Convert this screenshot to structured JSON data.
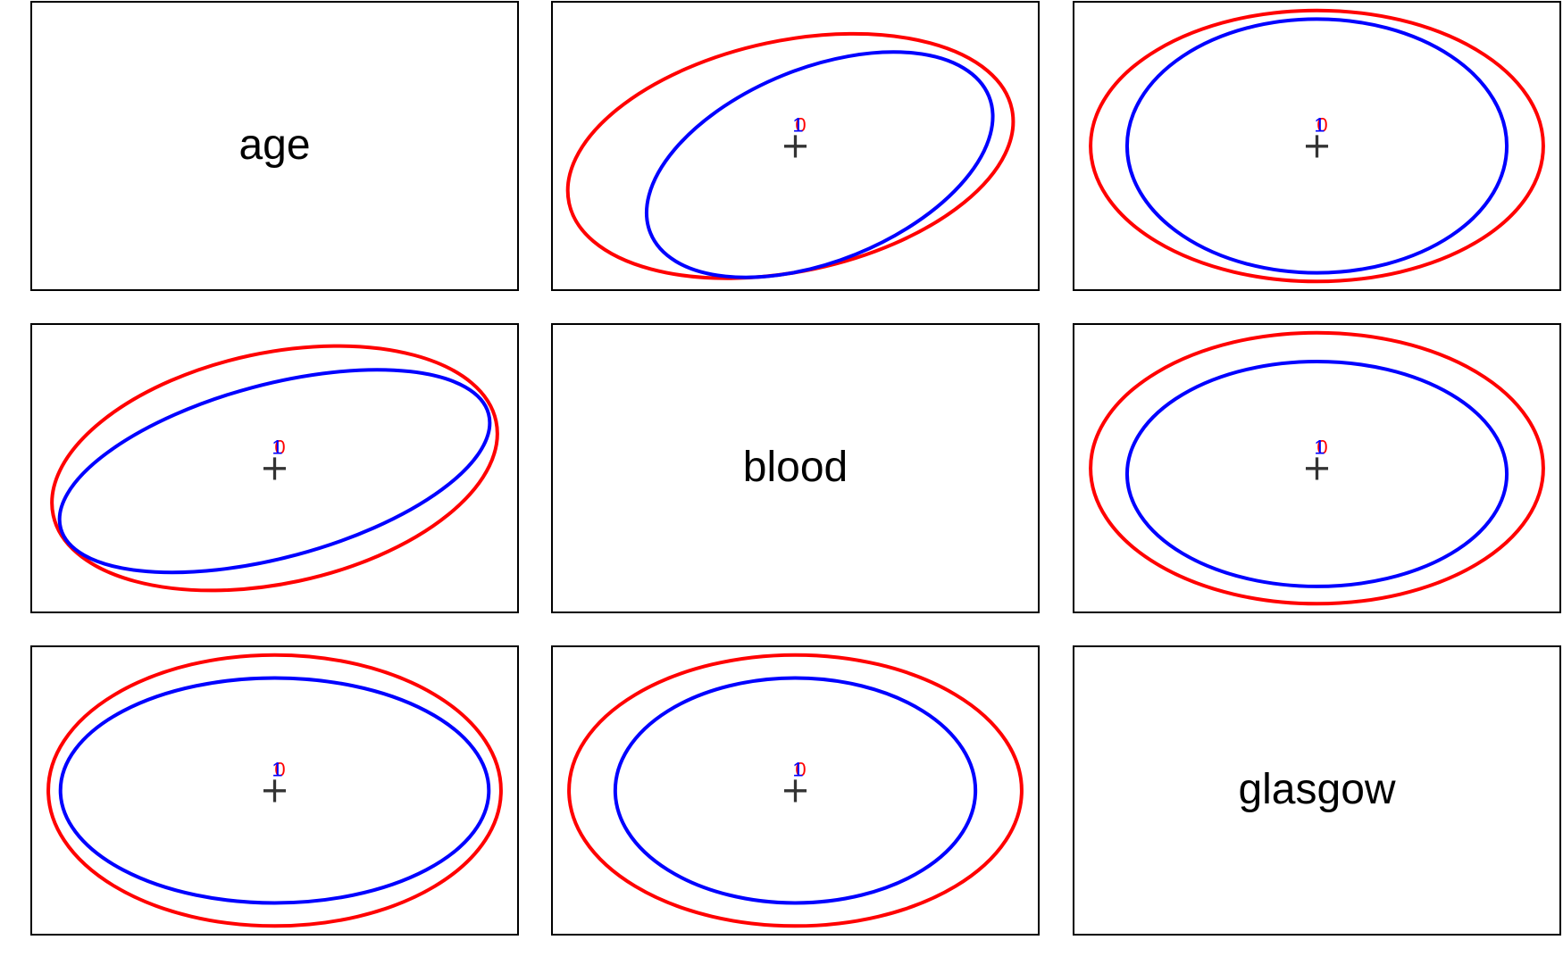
{
  "chart_data": {
    "type": "ellipse-matrix",
    "variables": [
      "age",
      "blood",
      "glasgow"
    ],
    "colors": {
      "group_a": "#ff0000",
      "group_b": "#0000ff",
      "frame": "#000000",
      "center": "#333333"
    },
    "center_marker": "+",
    "center_labels": {
      "group_a": "0",
      "group_b": "1"
    },
    "cells": [
      {
        "row": 0,
        "col": 0,
        "kind": "label",
        "text": "age"
      },
      {
        "row": 0,
        "col": 1,
        "kind": "ellipses",
        "red": {
          "cx": -0.02,
          "cy": 0.07,
          "rx": 0.93,
          "ry": 0.8,
          "angle": -12
        },
        "blue": {
          "cx": 0.1,
          "cy": 0.13,
          "rx": 0.75,
          "ry": 0.67,
          "angle": -22
        }
      },
      {
        "row": 0,
        "col": 2,
        "kind": "ellipses",
        "red": {
          "cx": 0.0,
          "cy": 0.0,
          "rx": 0.93,
          "ry": 0.94,
          "angle": 0
        },
        "blue": {
          "cx": 0.0,
          "cy": 0.0,
          "rx": 0.78,
          "ry": 0.88,
          "angle": 0
        }
      },
      {
        "row": 1,
        "col": 0,
        "kind": "ellipses",
        "red": {
          "cx": 0.0,
          "cy": 0.0,
          "rx": 0.93,
          "ry": 0.8,
          "angle": -12
        },
        "blue": {
          "cx": 0.0,
          "cy": 0.02,
          "rx": 0.91,
          "ry": 0.6,
          "angle": -15
        }
      },
      {
        "row": 1,
        "col": 1,
        "kind": "label",
        "text": "blood"
      },
      {
        "row": 1,
        "col": 2,
        "kind": "ellipses",
        "red": {
          "cx": 0.0,
          "cy": 0.0,
          "rx": 0.93,
          "ry": 0.94,
          "angle": 0
        },
        "blue": {
          "cx": 0.0,
          "cy": 0.04,
          "rx": 0.78,
          "ry": 0.78,
          "angle": 0
        }
      },
      {
        "row": 2,
        "col": 0,
        "kind": "ellipses",
        "red": {
          "cx": 0.0,
          "cy": 0.0,
          "rx": 0.93,
          "ry": 0.94,
          "angle": 0
        },
        "blue": {
          "cx": 0.0,
          "cy": 0.0,
          "rx": 0.88,
          "ry": 0.78,
          "angle": 0
        }
      },
      {
        "row": 2,
        "col": 1,
        "kind": "ellipses",
        "red": {
          "cx": 0.0,
          "cy": 0.0,
          "rx": 0.93,
          "ry": 0.94,
          "angle": 0
        },
        "blue": {
          "cx": 0.0,
          "cy": 0.0,
          "rx": 0.74,
          "ry": 0.78,
          "angle": 0
        }
      },
      {
        "row": 2,
        "col": 2,
        "kind": "label",
        "text": "glasgow"
      }
    ]
  }
}
